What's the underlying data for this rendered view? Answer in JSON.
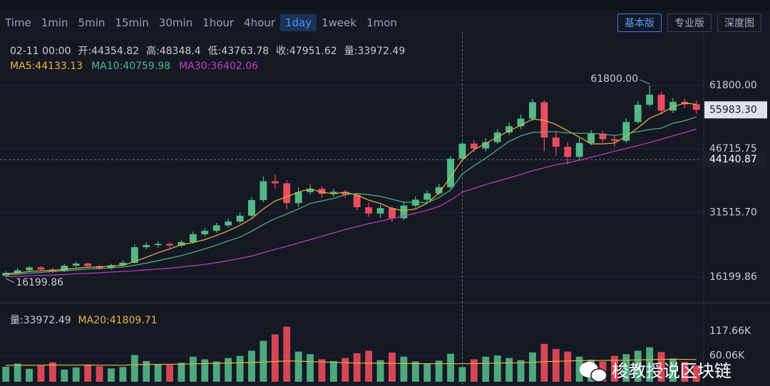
{
  "tabs": [
    "Time",
    "1min",
    "5min",
    "15min",
    "30min",
    "1hour",
    "4hour",
    "1day",
    "1week",
    "1mon"
  ],
  "active_tab": "1day",
  "view_buttons": [
    "基本版",
    "专业版",
    "深度图"
  ],
  "active_view": "基本版",
  "watermark": "梭教授说区块链",
  "chart_data": {
    "type": "candlestick",
    "categories": [
      null,
      null,
      null,
      null,
      null,
      null,
      null,
      null,
      null,
      null,
      null,
      null,
      null,
      null,
      null,
      null,
      null,
      null,
      null,
      null,
      null,
      null,
      null,
      null,
      null,
      null,
      null,
      null,
      null,
      null,
      null,
      null,
      null,
      null,
      null,
      null,
      null,
      null,
      null,
      "02-11 00:00",
      null,
      null,
      null,
      null,
      null,
      null,
      null,
      null,
      null,
      null,
      null,
      null,
      null,
      null,
      null,
      null,
      null,
      null,
      null,
      null
    ],
    "info_labels": {
      "open": "开:",
      "high": "高:",
      "low": "低:",
      "close": "收:",
      "volume": "量:"
    },
    "up_color": "#53b987",
    "down_color": "#eb4d5c",
    "open": [
      16500,
      17200,
      17800,
      18500,
      18000,
      17600,
      18900,
      19400,
      18800,
      18300,
      19000,
      19600,
      23300,
      23800,
      24100,
      23700,
      24500,
      26400,
      27200,
      28500,
      29400,
      30800,
      34500,
      39000,
      38500,
      33800,
      36400,
      37200,
      36000,
      36500,
      35800,
      32800,
      31300,
      32600,
      30200,
      33200,
      34600,
      36100,
      37600,
      44354.82,
      47951.62,
      46800,
      48300,
      50600,
      52100,
      53900,
      57800,
      49400,
      47200,
      44800,
      48100,
      50300,
      49000,
      48600,
      53100,
      57200,
      59600,
      55800,
      57900,
      57300
    ],
    "high": [
      17600,
      18300,
      18900,
      18800,
      18400,
      19300,
      19900,
      19700,
      19100,
      19400,
      20100,
      23900,
      24400,
      24700,
      24500,
      25000,
      27100,
      27800,
      29100,
      30100,
      31600,
      35200,
      40100,
      40600,
      39200,
      37500,
      38300,
      37800,
      37200,
      37000,
      36200,
      33900,
      33400,
      33100,
      34100,
      35400,
      36800,
      38400,
      45000,
      48348.4,
      48700,
      49200,
      51400,
      53000,
      54900,
      58600,
      58300,
      50700,
      48300,
      49300,
      51200,
      51000,
      50100,
      53900,
      58100,
      61800,
      60200,
      58800,
      58600,
      58200
    ],
    "low": [
      16199.86,
      16900,
      17500,
      17600,
      17200,
      17400,
      18500,
      18400,
      17900,
      18000,
      18700,
      19400,
      22800,
      23200,
      23100,
      23300,
      24200,
      25900,
      26800,
      28000,
      29000,
      30400,
      34000,
      37200,
      32300,
      32900,
      35800,
      35100,
      35300,
      34900,
      32100,
      30500,
      30200,
      29300,
      29800,
      32800,
      34100,
      35600,
      37200,
      43763.78,
      45900,
      46100,
      47900,
      50000,
      51400,
      53300,
      46200,
      45100,
      43000,
      44100,
      47600,
      48300,
      47200,
      48100,
      52700,
      56800,
      54900,
      55200,
      56400,
      55100
    ],
    "close": [
      17200,
      17800,
      18500,
      18000,
      17600,
      18900,
      19400,
      18800,
      18300,
      19000,
      19600,
      23300,
      23800,
      24100,
      23700,
      24500,
      26400,
      27200,
      28500,
      29400,
      30800,
      34500,
      39000,
      38500,
      33800,
      36400,
      37200,
      36000,
      36500,
      35800,
      32800,
      31300,
      32600,
      30200,
      33200,
      34600,
      36100,
      37600,
      44354.82,
      47951.62,
      46800,
      48300,
      50600,
      52100,
      53900,
      57800,
      49400,
      47200,
      44800,
      48100,
      50300,
      49000,
      48600,
      53100,
      57200,
      59600,
      55800,
      57900,
      57300,
      55983.3
    ],
    "series": [
      {
        "name": "MA5:",
        "color": "#e9b53f",
        "values": [
          17000,
          17200,
          17500,
          17700,
          17800,
          18000,
          18300,
          18500,
          18600,
          18800,
          19000,
          19900,
          20900,
          22000,
          22900,
          23900,
          24400,
          25100,
          26100,
          27200,
          28500,
          30100,
          32400,
          34300,
          35300,
          36400,
          37200,
          36400,
          36000,
          36400,
          35700,
          34500,
          33700,
          32500,
          32000,
          32400,
          33800,
          36200,
          40000,
          44133.13,
          46500,
          48000,
          49500,
          51000,
          52300,
          53800,
          53500,
          52500,
          51000,
          49500,
          47900,
          47900,
          48100,
          49700,
          51700,
          54000,
          55200,
          56700,
          57600,
          57300
        ]
      },
      {
        "name": "MA10:",
        "color": "#4fb58a",
        "values": [
          16800,
          16900,
          17100,
          17300,
          17500,
          17700,
          17900,
          18100,
          18200,
          18400,
          18600,
          19000,
          19500,
          20100,
          20700,
          21300,
          22100,
          22900,
          23800,
          24800,
          25700,
          27100,
          28700,
          30100,
          31200,
          32400,
          33700,
          34300,
          34900,
          35800,
          36100,
          35800,
          35400,
          34700,
          34000,
          34000,
          33900,
          35100,
          36900,
          40759.98,
          42700,
          44500,
          46500,
          48500,
          49800,
          50600,
          50700,
          50800,
          50500,
          50400,
          50400,
          50200,
          49900,
          50300,
          50800,
          51300,
          51600,
          52800,
          53400,
          54300
        ]
      },
      {
        "name": "MA30:",
        "color": "#c53ac9",
        "values": [
          16300,
          16400,
          16500,
          16600,
          16700,
          16800,
          17000,
          17100,
          17200,
          17400,
          17500,
          17700,
          17900,
          18100,
          18300,
          18600,
          18900,
          19200,
          19600,
          20100,
          20600,
          21200,
          22000,
          22800,
          23500,
          24300,
          25100,
          25900,
          26700,
          27500,
          28200,
          28900,
          29500,
          30100,
          30700,
          31400,
          32100,
          33000,
          34500,
          36402.06,
          37300,
          38200,
          39000,
          39800,
          40600,
          41500,
          42200,
          42900,
          43400,
          44000,
          44700,
          45400,
          46100,
          46800,
          47500,
          48200,
          49000,
          49800,
          50600,
          51400
        ]
      }
    ],
    "ylim": [
      10100,
      74500
    ],
    "yticks": [
      {
        "value": 16199.86,
        "label": "16199.86"
      },
      {
        "value": 31515.7,
        "label": "31515.70"
      },
      46715.75,
      {
        "value": 61800,
        "label": "61800.00"
      }
    ],
    "grid": true,
    "last_price": {
      "value": 55983.3,
      "label": "55983.30"
    },
    "crosshair_price": 44140.87,
    "max_marker": {
      "value": 61800,
      "label": "61800.00"
    },
    "min_marker": 16199.86,
    "volume": {
      "label": "量:",
      "values": [
        35000,
        42000,
        30000,
        38000,
        45000,
        28000,
        33000,
        40000,
        36000,
        31000,
        34000,
        62000,
        48000,
        41000,
        39000,
        44000,
        58000,
        52000,
        47000,
        55000,
        60000,
        72000,
        95000,
        110000,
        128000,
        70000,
        64000,
        52000,
        48000,
        55000,
        66000,
        72000,
        50000,
        68000,
        58000,
        47000,
        42000,
        49000,
        65000,
        33972.49,
        52000,
        58000,
        61000,
        55000,
        50000,
        68000,
        88000,
        76000,
        70000,
        58000,
        51000,
        47000,
        60000,
        64000,
        72000,
        80000,
        69000,
        54000,
        46000,
        38000
      ],
      "ylim": [
        0,
        167000
      ],
      "yticks": [
        {
          "value": 60060,
          "label": "60.06K"
        },
        {
          "value": 117660,
          "label": "117.66K"
        }
      ],
      "ma": {
        "name": "MA20:",
        "color": "#e9b53f",
        "values": [
          38000,
          38500,
          38200,
          38400,
          39000,
          38600,
          38500,
          38700,
          38600,
          38300,
          38400,
          39500,
          40100,
          40300,
          40500,
          40800,
          41600,
          42200,
          42800,
          43500,
          43800,
          44500,
          45600,
          47000,
          48200,
          47800,
          46900,
          45800,
          44900,
          44200,
          43500,
          43200,
          43000,
          42600,
          42400,
          42200,
          42000,
          41900,
          41800,
          41809.71,
          42100,
          42600,
          43300,
          43800,
          44200,
          45100,
          46500,
          47400,
          48200,
          48700,
          49000,
          49200,
          49600,
          50000,
          50600,
          51400,
          52000,
          52100,
          52000,
          51600
        ]
      }
    }
  }
}
